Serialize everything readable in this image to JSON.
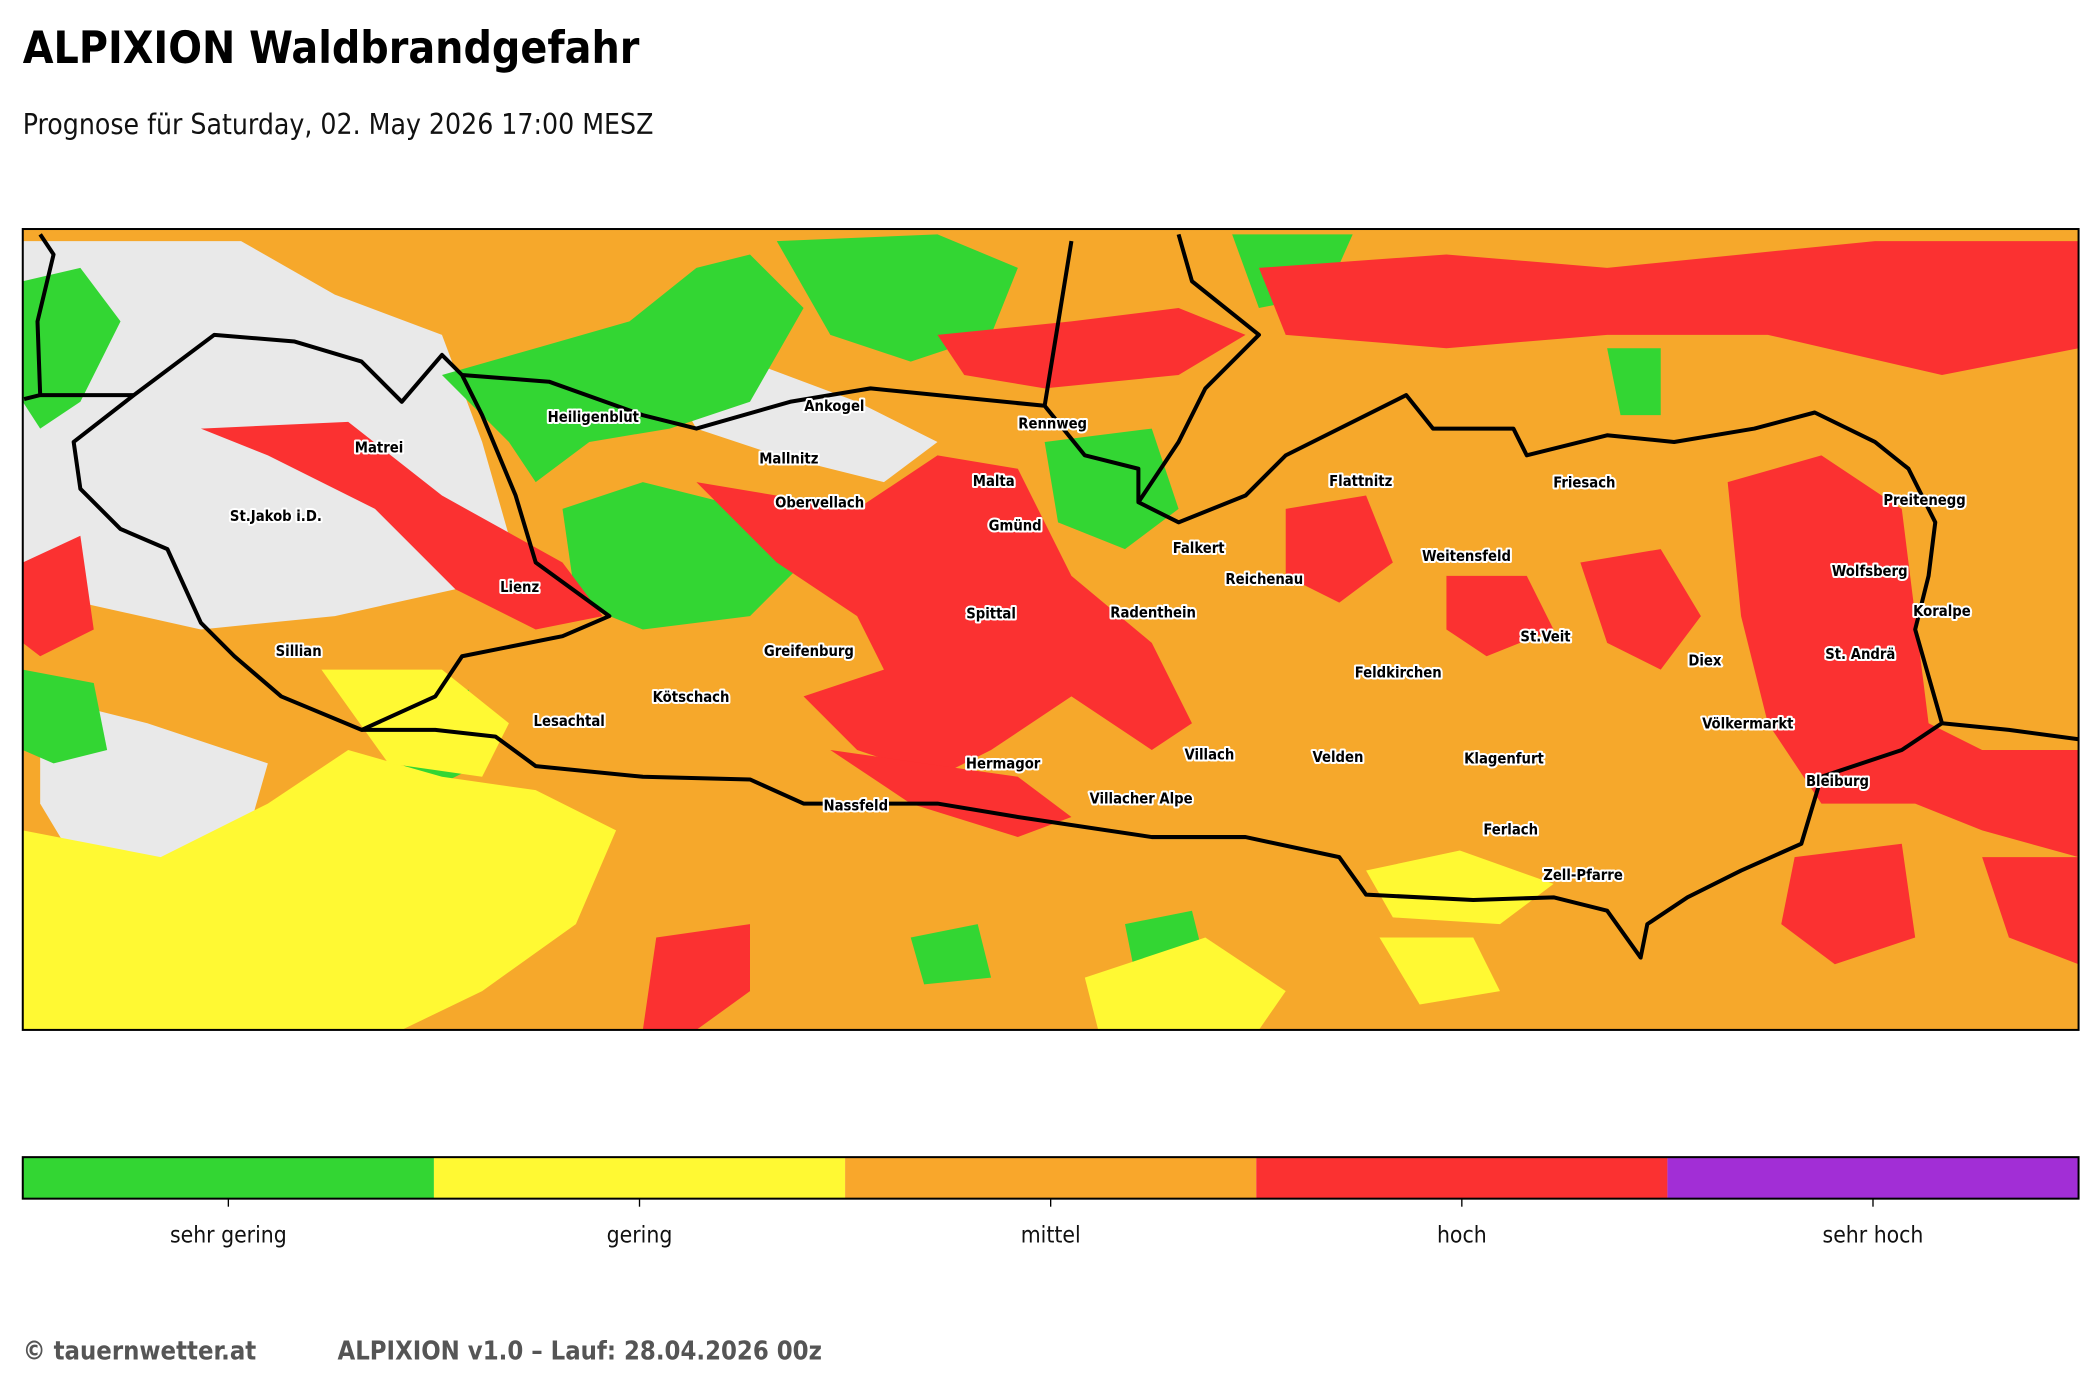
{
  "header": {
    "title": "ALPIXION Waldbrandgefahr",
    "subtitle": "Prognose für Saturday, 02. May 2026 17:00 MESZ"
  },
  "map": {
    "places": [
      "Matrei",
      "St.Jakob i.D.",
      "Lienz",
      "Sillian",
      "Heiligenblut",
      "Ankogel",
      "Mallnitz",
      "Obervellach",
      "Rennweg",
      "Malta",
      "Gmünd",
      "Spittal",
      "Radenthein",
      "Falkert",
      "Reichenau",
      "Greifenburg",
      "Kötschach",
      "Lesachtal",
      "Hermagor",
      "Nassfeld",
      "Villacher Alpe",
      "Villach",
      "Velden",
      "Flattnitz",
      "Friesach",
      "Weitensfeld",
      "St.Veit",
      "Feldkirchen",
      "Klagenfurt",
      "Ferlach",
      "Zell-Pfarre",
      "Diex",
      "Völkermarkt",
      "Bleiburg",
      "St. Andrä",
      "Wolfsberg",
      "Koralpe",
      "Preitenegg"
    ]
  },
  "legend": {
    "items": [
      {
        "label": "sehr gering",
        "color": "#33d633"
      },
      {
        "label": "gering",
        "color": "#fff933"
      },
      {
        "label": "mittel",
        "color": "#f9a72b"
      },
      {
        "label": "hoch",
        "color": "#fb3131"
      },
      {
        "label": "sehr hoch",
        "color": "#a22ed6"
      }
    ]
  },
  "footer": {
    "copyright": "© tauernwetter.at",
    "run": "ALPIXION v1.0 – Lauf: 28.04.2026 00z"
  }
}
